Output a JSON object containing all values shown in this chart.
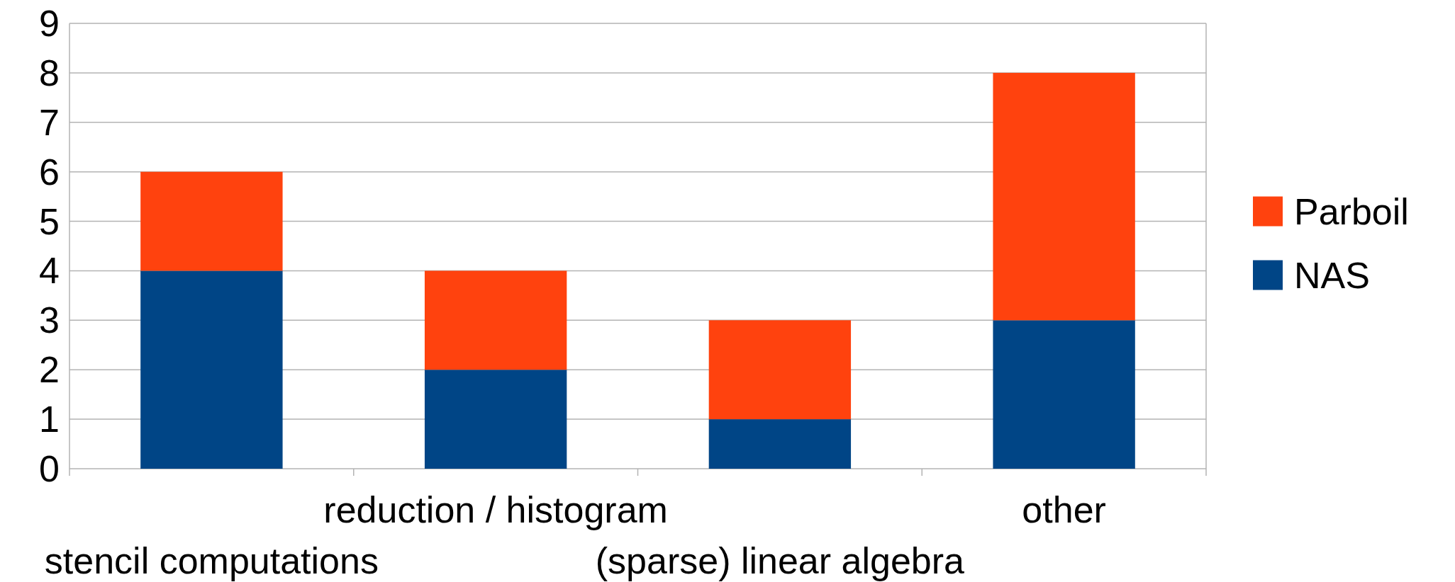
{
  "chart_data": {
    "type": "bar",
    "stacked": true,
    "categories": [
      "stencil computations",
      "reduction / histogram",
      "(sparse) linear algebra",
      "other"
    ],
    "series": [
      {
        "name": "NAS",
        "color": "#004586",
        "values": [
          4,
          2,
          1,
          3
        ]
      },
      {
        "name": "Parboil",
        "color": "#ff420e",
        "values": [
          2,
          2,
          2,
          5
        ]
      }
    ],
    "ylim": [
      0,
      9
    ],
    "yticks": [
      0,
      1,
      2,
      3,
      4,
      5,
      6,
      7,
      8,
      9
    ],
    "grid": "y",
    "legend": "right"
  }
}
